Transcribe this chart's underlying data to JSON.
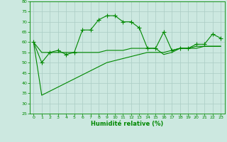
{
  "xlabel": "Humidité relative (%)",
  "background_color": "#cce8e0",
  "grid_color": "#aaccc4",
  "line_color": "#008800",
  "xlim": [
    -0.5,
    23.5
  ],
  "ylim": [
    25,
    80
  ],
  "yticks": [
    25,
    30,
    35,
    40,
    45,
    50,
    55,
    60,
    65,
    70,
    75,
    80
  ],
  "xticks": [
    0,
    1,
    2,
    3,
    4,
    5,
    6,
    7,
    8,
    9,
    10,
    11,
    12,
    13,
    14,
    15,
    16,
    17,
    18,
    19,
    20,
    21,
    22,
    23
  ],
  "line1_x": [
    0,
    1,
    2,
    3,
    4,
    5,
    6,
    7,
    8,
    9,
    10,
    11,
    12,
    13,
    14,
    15,
    16,
    17,
    18,
    19,
    20,
    21,
    22,
    23
  ],
  "line1_y": [
    60,
    50,
    55,
    56,
    54,
    55,
    66,
    66,
    71,
    73,
    73,
    70,
    70,
    67,
    57,
    57,
    65,
    56,
    57,
    57,
    59,
    59,
    64,
    62
  ],
  "line2_x": [
    0,
    1,
    2,
    3,
    4,
    5,
    6,
    7,
    8,
    9,
    10,
    11,
    12,
    13,
    14,
    15,
    16,
    17,
    18,
    19,
    20,
    21,
    22,
    23
  ],
  "line2_y": [
    60,
    55,
    55,
    55,
    55,
    55,
    55,
    55,
    55,
    56,
    56,
    56,
    57,
    57,
    57,
    57,
    54,
    55,
    57,
    57,
    58,
    58,
    58,
    58
  ],
  "line3_x": [
    0,
    1,
    2,
    3,
    4,
    5,
    6,
    7,
    8,
    9,
    10,
    11,
    12,
    13,
    14,
    15,
    16,
    17,
    18,
    19,
    20,
    21,
    22,
    23
  ],
  "line3_y": [
    60,
    34,
    36,
    38,
    40,
    42,
    44,
    46,
    48,
    50,
    51,
    52,
    53,
    54,
    55,
    55,
    55,
    56,
    57,
    57,
    57,
    58,
    58,
    58
  ]
}
